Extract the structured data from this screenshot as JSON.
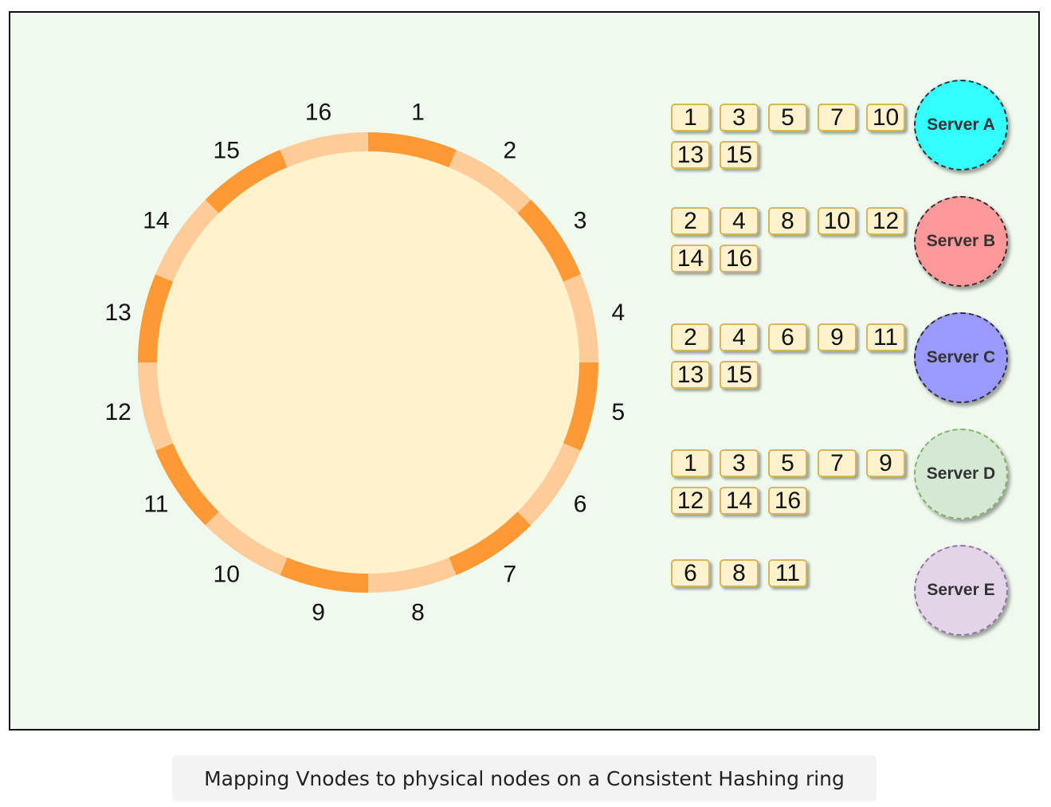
{
  "ring": {
    "segments": [
      {
        "label": "1",
        "shade": "dark"
      },
      {
        "label": "2",
        "shade": "light"
      },
      {
        "label": "3",
        "shade": "dark"
      },
      {
        "label": "4",
        "shade": "light"
      },
      {
        "label": "5",
        "shade": "dark"
      },
      {
        "label": "6",
        "shade": "light"
      },
      {
        "label": "7",
        "shade": "dark"
      },
      {
        "label": "8",
        "shade": "light"
      },
      {
        "label": "9",
        "shade": "dark"
      },
      {
        "label": "10",
        "shade": "light"
      },
      {
        "label": "11",
        "shade": "dark"
      },
      {
        "label": "12",
        "shade": "light"
      },
      {
        "label": "13",
        "shade": "dark"
      },
      {
        "label": "14",
        "shade": "light"
      },
      {
        "label": "15",
        "shade": "dark"
      },
      {
        "label": "16",
        "shade": "light"
      }
    ],
    "colors": {
      "dark": "#ff9933",
      "light": "#ffcc99",
      "fill": "#fff2cc"
    }
  },
  "servers": [
    {
      "name": "Server A",
      "color": "#33ffff",
      "border": "#333333",
      "vnodes": [
        "1",
        "3",
        "5",
        "7",
        "10",
        "13",
        "15"
      ]
    },
    {
      "name": "Server B",
      "color": "#ff9999",
      "border": "#333333",
      "vnodes": [
        "2",
        "4",
        "8",
        "10",
        "12",
        "14",
        "16"
      ]
    },
    {
      "name": "Server C",
      "color": "#9999ff",
      "border": "#333333",
      "vnodes": [
        "2",
        "4",
        "6",
        "9",
        "11",
        "13",
        "15"
      ]
    },
    {
      "name": "Server D",
      "color": "#d5e8d4",
      "border": "#82b366",
      "vnodes": [
        "1",
        "3",
        "5",
        "7",
        "9",
        "12",
        "14",
        "16"
      ]
    },
    {
      "name": "Server E",
      "color": "#e1d5e7",
      "border": "#9673a6",
      "vnodes": [
        "6",
        "8",
        "11"
      ]
    }
  ],
  "caption": "Mapping Vnodes to physical nodes on a Consistent Hashing ring"
}
